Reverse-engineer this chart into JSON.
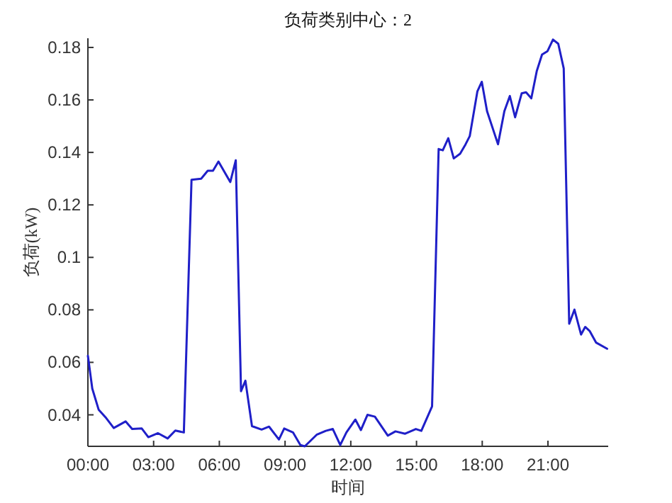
{
  "chart_data": {
    "type": "line",
    "title": "负荷类别中心：2",
    "xlabel": "时间",
    "ylabel": "负荷(kW)",
    "x": [
      0,
      0.2,
      0.49,
      0.84,
      1.18,
      1.72,
      2.02,
      2.46,
      2.76,
      3.2,
      3.64,
      3.99,
      4.38,
      4.73,
      5.17,
      5.47,
      5.71,
      5.96,
      6.5,
      6.75,
      6.99,
      7.19,
      7.49,
      7.93,
      8.27,
      8.72,
      8.96,
      9.36,
      9.7,
      9.9,
      10.44,
      10.86,
      11.18,
      11.52,
      11.8,
      12.21,
      12.46,
      12.76,
      13.1,
      13.69,
      14.04,
      14.48,
      14.97,
      15.22,
      15.71,
      16.01,
      16.2,
      16.45,
      16.7,
      16.99,
      17.24,
      17.43,
      17.78,
      17.98,
      18.22,
      18.72,
      19.01,
      19.26,
      19.5,
      19.8,
      20.0,
      20.24,
      20.49,
      20.73,
      20.98,
      21.23,
      21.47,
      21.72,
      21.97,
      22.21,
      22.51,
      22.7,
      22.9,
      23.2,
      23.7
    ],
    "series": [
      {
        "color": "#1f1fc8",
        "values": [
          0.0625,
          0.05,
          0.042,
          0.0387,
          0.035,
          0.0375,
          0.0346,
          0.0348,
          0.0315,
          0.033,
          0.031,
          0.034,
          0.0333,
          0.1296,
          0.13,
          0.133,
          0.133,
          0.1365,
          0.1287,
          0.137,
          0.049,
          0.053,
          0.0357,
          0.0344,
          0.0355,
          0.0306,
          0.0348,
          0.0333,
          0.0285,
          0.028,
          0.0324,
          0.0339,
          0.0346,
          0.0285,
          0.0333,
          0.0382,
          0.0342,
          0.04,
          0.0393,
          0.0321,
          0.0337,
          0.0328,
          0.0346,
          0.0339,
          0.0432,
          0.1413,
          0.1408,
          0.1454,
          0.1377,
          0.1395,
          0.1431,
          0.1462,
          0.1633,
          0.1669,
          0.1557,
          0.1431,
          0.1557,
          0.1615,
          0.1534,
          0.1625,
          0.1629,
          0.1606,
          0.171,
          0.1773,
          0.1786,
          0.183,
          0.1814,
          0.172,
          0.0747,
          0.0801,
          0.0706,
          0.0735,
          0.072,
          0.0675,
          0.0652
        ]
      }
    ],
    "xlim": [
      0,
      23.75
    ],
    "xticks": [
      {
        "value": 0,
        "label": "00:00"
      },
      {
        "value": 3,
        "label": "03:00"
      },
      {
        "value": 6,
        "label": "06:00"
      },
      {
        "value": 9,
        "label": "09:00"
      },
      {
        "value": 12,
        "label": "12:00"
      },
      {
        "value": 15,
        "label": "15:00"
      },
      {
        "value": 18,
        "label": "18:00"
      },
      {
        "value": 21,
        "label": "21:00"
      }
    ],
    "ylim": [
      0.028,
      0.1835
    ],
    "yticks": [
      0.04,
      0.06,
      0.08,
      0.1,
      0.12,
      0.14,
      0.16,
      0.18
    ],
    "grid": false,
    "marker": "none",
    "line_style": "solid"
  }
}
